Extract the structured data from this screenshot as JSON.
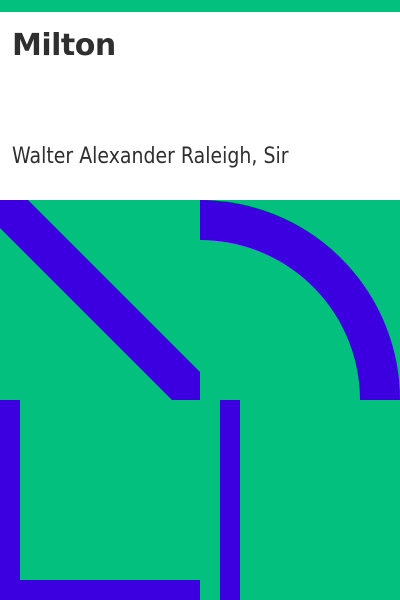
{
  "book": {
    "title": "Milton",
    "author": "Walter Alexander Raleigh, Sir"
  },
  "colors": {
    "green": "#03c07e",
    "blue": "#3c00e0",
    "text": "#2f2f2f",
    "panel": "#ffffff"
  }
}
